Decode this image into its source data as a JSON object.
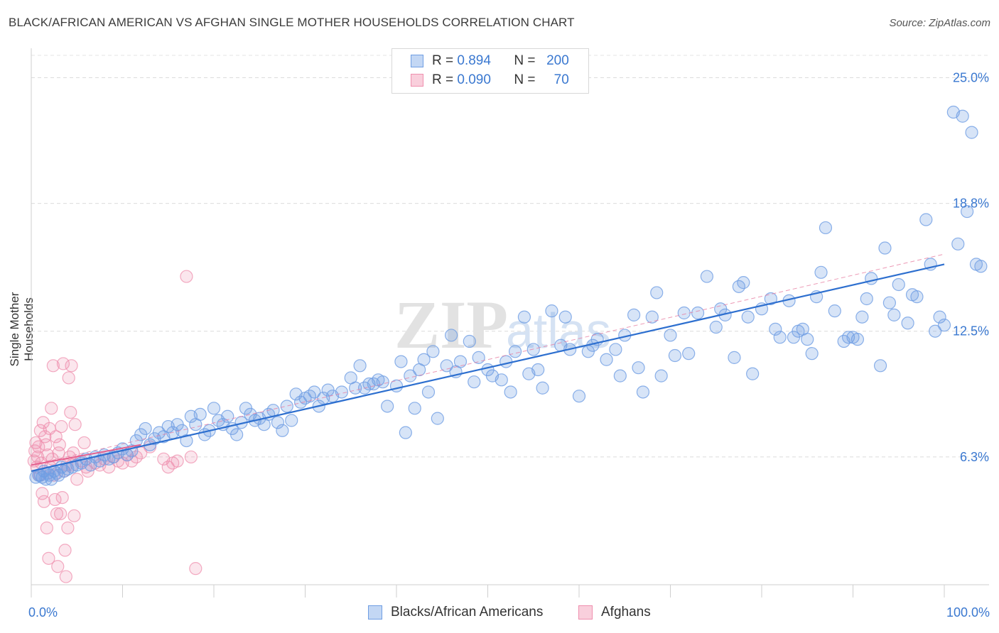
{
  "title": "BLACK/AFRICAN AMERICAN VS AFGHAN SINGLE MOTHER HOUSEHOLDS CORRELATION CHART",
  "source": "Source: ZipAtlas.com",
  "watermark": {
    "zip": "ZIP",
    "atlas": "atlas"
  },
  "legend_top": {
    "rows": [
      {
        "r_label": "R =",
        "r_value": "0.894",
        "n_label": "N =",
        "n_value": "200",
        "color": "#6f9ee3"
      },
      {
        "r_label": "R =",
        "r_value": "0.090",
        "n_label": "N =",
        "n_value": "70",
        "color": "#ef8fae"
      }
    ]
  },
  "legend_bottom": [
    {
      "label": "Blacks/African Americans",
      "color": "#6f9ee3"
    },
    {
      "label": "Afghans",
      "color": "#ef8fae"
    }
  ],
  "chart_data": {
    "type": "scatter",
    "title": "BLACK/AFRICAN AMERICAN VS AFGHAN SINGLE MOTHER HOUSEHOLDS CORRELATION CHART",
    "xlabel": "",
    "ylabel": "Single Mother Households",
    "xlim": [
      0,
      100
    ],
    "ylim": [
      0,
      26.1
    ],
    "x_tick_labels": [
      "0.0%",
      "100.0%"
    ],
    "y_ticks": [
      6.3,
      12.5,
      18.8,
      25.0
    ],
    "y_tick_labels": [
      "6.3%",
      "12.5%",
      "18.8%",
      "25.0%"
    ],
    "grid": true,
    "legend_position": "bottom",
    "series": [
      {
        "name": "Blacks/African Americans",
        "color": "#6f9ee3",
        "trend": {
          "x": [
            0,
            100
          ],
          "y": [
            5.6,
            15.8
          ]
        },
        "points": [
          [
            0.5,
            5.3
          ],
          [
            0.8,
            5.4
          ],
          [
            1.0,
            5.4
          ],
          [
            1.2,
            5.3
          ],
          [
            1.4,
            5.6
          ],
          [
            1.6,
            5.2
          ],
          [
            1.8,
            5.5
          ],
          [
            2.0,
            5.4
          ],
          [
            2.2,
            5.2
          ],
          [
            2.5,
            5.6
          ],
          [
            2.8,
            5.5
          ],
          [
            3.0,
            5.4
          ],
          [
            3.3,
            5.8
          ],
          [
            3.6,
            5.6
          ],
          [
            4.0,
            5.7
          ],
          [
            4.5,
            5.8
          ],
          [
            5.0,
            5.9
          ],
          [
            5.5,
            6.0
          ],
          [
            6.0,
            6.2
          ],
          [
            6.5,
            5.9
          ],
          [
            7.0,
            6.3
          ],
          [
            7.5,
            6.1
          ],
          [
            8.0,
            6.4
          ],
          [
            8.5,
            6.2
          ],
          [
            9.0,
            6.3
          ],
          [
            9.5,
            6.5
          ],
          [
            10.0,
            6.7
          ],
          [
            10.5,
            6.4
          ],
          [
            11.0,
            6.6
          ],
          [
            11.5,
            7.1
          ],
          [
            12.0,
            7.4
          ],
          [
            12.5,
            7.7
          ],
          [
            13.0,
            6.9
          ],
          [
            13.5,
            7.2
          ],
          [
            14.0,
            7.5
          ],
          [
            14.5,
            7.3
          ],
          [
            15.0,
            7.8
          ],
          [
            15.5,
            7.5
          ],
          [
            16.0,
            7.9
          ],
          [
            16.5,
            7.6
          ],
          [
            17.0,
            7.1
          ],
          [
            17.5,
            8.3
          ],
          [
            18.0,
            7.9
          ],
          [
            18.5,
            8.4
          ],
          [
            19.0,
            7.4
          ],
          [
            19.5,
            7.6
          ],
          [
            20.0,
            8.7
          ],
          [
            20.5,
            8.1
          ],
          [
            21.0,
            7.9
          ],
          [
            21.5,
            8.3
          ],
          [
            22.0,
            7.7
          ],
          [
            22.5,
            7.4
          ],
          [
            23.0,
            8.0
          ],
          [
            23.5,
            8.7
          ],
          [
            24.0,
            8.4
          ],
          [
            24.5,
            8.1
          ],
          [
            25.0,
            8.2
          ],
          [
            25.5,
            7.9
          ],
          [
            26.0,
            8.4
          ],
          [
            26.5,
            8.6
          ],
          [
            27.0,
            8.0
          ],
          [
            27.5,
            7.6
          ],
          [
            28.0,
            8.8
          ],
          [
            28.5,
            8.1
          ],
          [
            29.0,
            9.4
          ],
          [
            29.5,
            9.0
          ],
          [
            30.0,
            9.2
          ],
          [
            30.5,
            9.3
          ],
          [
            31.0,
            9.5
          ],
          [
            31.5,
            8.8
          ],
          [
            32.0,
            9.2
          ],
          [
            32.5,
            9.6
          ],
          [
            33.0,
            9.3
          ],
          [
            34.0,
            9.5
          ],
          [
            35.0,
            10.2
          ],
          [
            35.5,
            9.7
          ],
          [
            36.0,
            10.8
          ],
          [
            36.5,
            9.7
          ],
          [
            37.0,
            9.9
          ],
          [
            37.5,
            9.9
          ],
          [
            38.0,
            10.1
          ],
          [
            38.5,
            10.0
          ],
          [
            39.0,
            8.8
          ],
          [
            40.0,
            9.8
          ],
          [
            40.5,
            11.0
          ],
          [
            41.0,
            7.5
          ],
          [
            41.5,
            10.3
          ],
          [
            42.0,
            8.7
          ],
          [
            42.5,
            10.6
          ],
          [
            43.0,
            11.1
          ],
          [
            43.5,
            9.5
          ],
          [
            44.0,
            11.5
          ],
          [
            44.5,
            8.2
          ],
          [
            45.5,
            10.8
          ],
          [
            46.0,
            12.3
          ],
          [
            46.5,
            10.5
          ],
          [
            47.0,
            11.0
          ],
          [
            48.0,
            12.0
          ],
          [
            48.5,
            10.0
          ],
          [
            49.0,
            11.2
          ],
          [
            50.0,
            10.6
          ],
          [
            50.5,
            10.3
          ],
          [
            51.5,
            10.1
          ],
          [
            52.0,
            11.0
          ],
          [
            52.5,
            9.5
          ],
          [
            53.0,
            11.5
          ],
          [
            54.0,
            13.2
          ],
          [
            54.5,
            10.4
          ],
          [
            55.0,
            11.6
          ],
          [
            55.5,
            10.6
          ],
          [
            56.0,
            9.7
          ],
          [
            57.0,
            13.5
          ],
          [
            58.0,
            11.8
          ],
          [
            58.5,
            13.2
          ],
          [
            59.0,
            11.6
          ],
          [
            60.0,
            9.3
          ],
          [
            61.0,
            11.5
          ],
          [
            61.5,
            11.8
          ],
          [
            62.0,
            12.1
          ],
          [
            63.0,
            11.1
          ],
          [
            64.0,
            11.6
          ],
          [
            64.5,
            10.3
          ],
          [
            65.0,
            12.3
          ],
          [
            66.0,
            13.3
          ],
          [
            66.5,
            10.7
          ],
          [
            67.0,
            9.5
          ],
          [
            68.0,
            13.2
          ],
          [
            68.5,
            14.4
          ],
          [
            69.0,
            10.3
          ],
          [
            70.0,
            12.3
          ],
          [
            70.5,
            11.3
          ],
          [
            71.5,
            13.4
          ],
          [
            72.0,
            11.4
          ],
          [
            73.0,
            13.4
          ],
          [
            74.0,
            15.2
          ],
          [
            75.0,
            12.7
          ],
          [
            75.5,
            13.6
          ],
          [
            76.0,
            13.3
          ],
          [
            77.0,
            11.2
          ],
          [
            77.5,
            14.7
          ],
          [
            78.0,
            14.9
          ],
          [
            78.5,
            13.2
          ],
          [
            79.0,
            10.4
          ],
          [
            80.0,
            13.6
          ],
          [
            81.0,
            14.1
          ],
          [
            81.5,
            12.6
          ],
          [
            82.0,
            12.2
          ],
          [
            83.0,
            14.0
          ],
          [
            83.5,
            12.2
          ],
          [
            84.0,
            12.5
          ],
          [
            84.5,
            12.6
          ],
          [
            85.0,
            12.1
          ],
          [
            85.5,
            11.4
          ],
          [
            86.0,
            14.2
          ],
          [
            86.5,
            15.4
          ],
          [
            87.0,
            17.6
          ],
          [
            88.0,
            13.5
          ],
          [
            89.0,
            12.0
          ],
          [
            89.5,
            12.2
          ],
          [
            90.0,
            12.2
          ],
          [
            90.5,
            12.1
          ],
          [
            91.0,
            13.2
          ],
          [
            91.5,
            14.1
          ],
          [
            92.0,
            15.1
          ],
          [
            93.0,
            10.8
          ],
          [
            93.5,
            16.6
          ],
          [
            94.0,
            13.9
          ],
          [
            94.5,
            13.3
          ],
          [
            95.0,
            14.8
          ],
          [
            96.0,
            12.9
          ],
          [
            96.5,
            14.3
          ],
          [
            97.0,
            14.2
          ],
          [
            98.0,
            18.0
          ],
          [
            98.5,
            15.8
          ],
          [
            99.0,
            12.5
          ],
          [
            99.5,
            13.2
          ],
          [
            100.0,
            12.8
          ],
          [
            101.0,
            23.3
          ],
          [
            101.5,
            16.8
          ],
          [
            102.0,
            23.1
          ],
          [
            102.5,
            18.4
          ],
          [
            103.0,
            22.3
          ],
          [
            103.5,
            15.8
          ],
          [
            104.0,
            15.7
          ]
        ]
      },
      {
        "name": "Afghans",
        "color": "#ef8fae",
        "trend": {
          "x": [
            0,
            12
          ],
          "y": [
            5.9,
            6.9
          ]
        },
        "points": [
          [
            0.3,
            6.1
          ],
          [
            0.4,
            6.6
          ],
          [
            0.5,
            7.0
          ],
          [
            0.6,
            5.8
          ],
          [
            0.7,
            6.3
          ],
          [
            0.8,
            6.8
          ],
          [
            0.9,
            5.4
          ],
          [
            1.0,
            7.6
          ],
          [
            1.1,
            6.0
          ],
          [
            1.2,
            4.5
          ],
          [
            1.3,
            8.0
          ],
          [
            1.4,
            4.1
          ],
          [
            1.5,
            7.3
          ],
          [
            1.6,
            6.9
          ],
          [
            1.7,
            2.8
          ],
          [
            1.8,
            6.4
          ],
          [
            1.9,
            1.3
          ],
          [
            2.0,
            7.7
          ],
          [
            2.1,
            5.8
          ],
          [
            2.2,
            8.7
          ],
          [
            2.3,
            6.2
          ],
          [
            2.4,
            10.8
          ],
          [
            2.5,
            5.4
          ],
          [
            2.6,
            4.2
          ],
          [
            2.7,
            7.3
          ],
          [
            2.8,
            3.5
          ],
          [
            2.9,
            0.9
          ],
          [
            3.0,
            6.5
          ],
          [
            3.1,
            6.9
          ],
          [
            3.2,
            3.5
          ],
          [
            3.3,
            7.8
          ],
          [
            3.4,
            4.3
          ],
          [
            3.5,
            10.9
          ],
          [
            3.6,
            5.6
          ],
          [
            3.7,
            1.7
          ],
          [
            3.8,
            0.4
          ],
          [
            3.9,
            5.9
          ],
          [
            4.0,
            2.8
          ],
          [
            4.1,
            10.2
          ],
          [
            4.2,
            6.3
          ],
          [
            4.3,
            8.5
          ],
          [
            4.4,
            10.8
          ],
          [
            4.5,
            5.9
          ],
          [
            4.6,
            6.5
          ],
          [
            4.7,
            3.4
          ],
          [
            4.8,
            7.9
          ],
          [
            5.0,
            5.2
          ],
          [
            5.5,
            6.1
          ],
          [
            5.8,
            7.0
          ],
          [
            6.0,
            5.8
          ],
          [
            6.2,
            5.6
          ],
          [
            7.0,
            6.0
          ],
          [
            7.5,
            5.9
          ],
          [
            8.0,
            6.2
          ],
          [
            8.5,
            5.8
          ],
          [
            9.0,
            6.3
          ],
          [
            9.5,
            6.1
          ],
          [
            10.0,
            6.0
          ],
          [
            10.5,
            6.4
          ],
          [
            11.0,
            6.1
          ],
          [
            11.5,
            6.3
          ],
          [
            12.0,
            6.5
          ],
          [
            13.0,
            6.8
          ],
          [
            14.5,
            6.2
          ],
          [
            15.0,
            5.8
          ],
          [
            15.5,
            6.0
          ],
          [
            16.0,
            6.1
          ],
          [
            17.0,
            15.2
          ],
          [
            17.5,
            6.3
          ],
          [
            18.0,
            0.8
          ]
        ]
      }
    ]
  }
}
